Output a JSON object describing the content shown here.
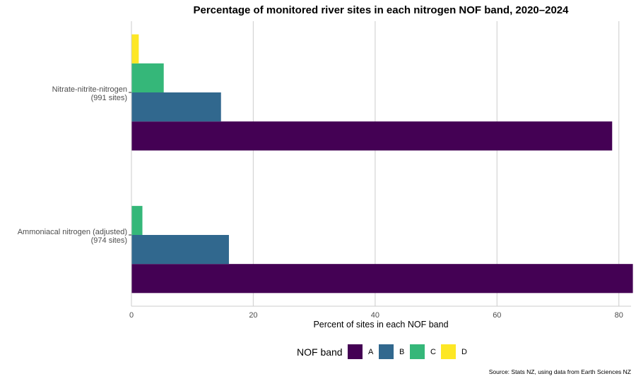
{
  "chart_data": {
    "type": "bar",
    "orientation": "horizontal",
    "title": "Percentage of monitored river sites in each nitrogen NOF band, 2020–2024",
    "xlabel": "Percent of sites in each NOF band",
    "ylabel": "",
    "xlim": [
      0,
      82
    ],
    "xticks": [
      0,
      20,
      40,
      60,
      80
    ],
    "grid": "vertical major gridlines",
    "categories": [
      {
        "line1": "Nitrate-nitrite-nitrogen",
        "line2": "(991 sites)"
      },
      {
        "line1": "Ammoniacal nitrogen (adjusted)",
        "line2": "(974 sites)"
      }
    ],
    "series": [
      {
        "name": "A",
        "color": "#440154",
        "values": [
          78.9,
          82.3
        ]
      },
      {
        "name": "B",
        "color": "#31688E",
        "values": [
          14.7,
          16.0
        ]
      },
      {
        "name": "C",
        "color": "#35B779",
        "values": [
          5.3,
          1.8
        ]
      },
      {
        "name": "D",
        "color": "#FDE725",
        "values": [
          1.2,
          0
        ]
      }
    ],
    "legend": {
      "title": "NOF band",
      "position": "bottom"
    },
    "source": "Source: Stats NZ, using data from Earth Sciences NZ"
  }
}
